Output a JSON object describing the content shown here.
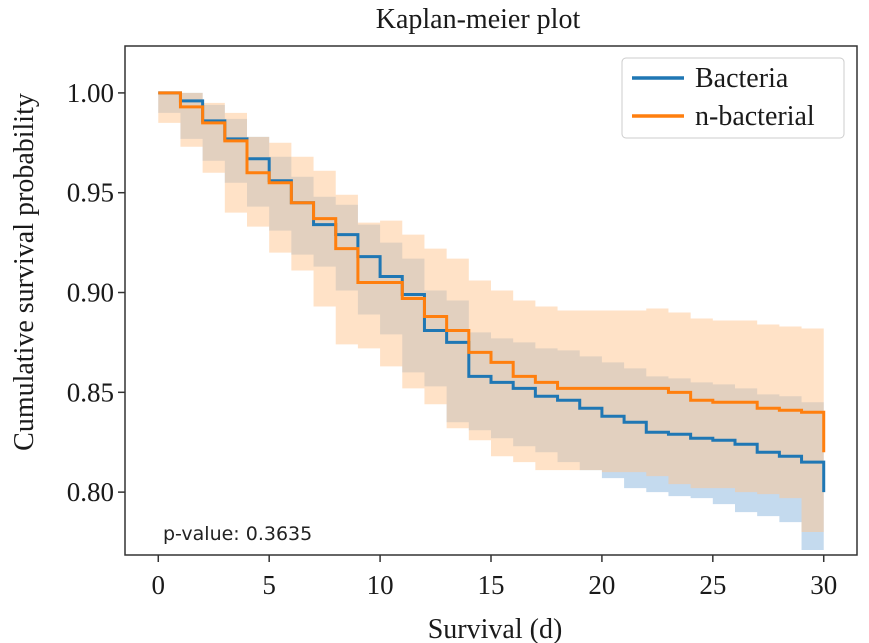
{
  "chart_data": {
    "type": "line",
    "title": "Kaplan-meier plot",
    "xlabel": "Survival (d)",
    "ylabel": "Cumulative survival probability",
    "xlim": [
      -1.5,
      31.5
    ],
    "ylim": [
      0.7685,
      1.0235
    ],
    "xticks": [
      0,
      5,
      10,
      15,
      20,
      25,
      30
    ],
    "xtick_labels": [
      "0",
      "5",
      "10",
      "15",
      "20",
      "25",
      "30"
    ],
    "yticks": [
      0.8,
      0.85,
      0.9,
      0.95,
      1.0
    ],
    "ytick_labels": [
      "0.80",
      "0.85",
      "0.90",
      "0.95",
      "1.00"
    ],
    "grid": false,
    "legend_position": "top-right",
    "annotation": "p-value: 0.3635",
    "series": [
      {
        "name": "Bacteria",
        "color": "#1f77b4",
        "band_color": "#8ab6dd",
        "x": [
          0,
          1,
          2,
          3,
          4,
          5,
          6,
          7,
          8,
          9,
          10,
          11,
          12,
          13,
          14,
          15,
          16,
          17,
          18,
          19,
          20,
          21,
          22,
          23,
          24,
          25,
          26,
          27,
          28,
          29,
          30
        ],
        "y": [
          1.0,
          0.996,
          0.986,
          0.977,
          0.967,
          0.956,
          0.945,
          0.934,
          0.929,
          0.918,
          0.908,
          0.899,
          0.881,
          0.875,
          0.858,
          0.855,
          0.852,
          0.848,
          0.846,
          0.842,
          0.838,
          0.835,
          0.83,
          0.829,
          0.827,
          0.826,
          0.824,
          0.82,
          0.818,
          0.815,
          0.8
        ],
        "lower": [
          1.0,
          0.99,
          0.977,
          0.966,
          0.955,
          0.943,
          0.931,
          0.919,
          0.913,
          0.901,
          0.889,
          0.879,
          0.86,
          0.853,
          0.835,
          0.831,
          0.827,
          0.823,
          0.82,
          0.815,
          0.811,
          0.807,
          0.802,
          0.8,
          0.798,
          0.797,
          0.794,
          0.79,
          0.788,
          0.785,
          0.771
        ],
        "upper": [
          1.0,
          1.0,
          0.994,
          0.987,
          0.978,
          0.968,
          0.958,
          0.948,
          0.944,
          0.934,
          0.925,
          0.917,
          0.901,
          0.896,
          0.88,
          0.877,
          0.875,
          0.872,
          0.871,
          0.868,
          0.865,
          0.862,
          0.858,
          0.857,
          0.855,
          0.854,
          0.852,
          0.849,
          0.848,
          0.845,
          0.83
        ]
      },
      {
        "name": "n-bacterial",
        "color": "#ff7f0e",
        "band_color": "#ffc58f",
        "x": [
          0,
          1,
          2,
          3,
          4,
          5,
          6,
          7,
          8,
          9,
          10,
          11,
          12,
          13,
          14,
          15,
          16,
          17,
          18,
          19,
          20,
          21,
          22,
          23,
          24,
          25,
          26,
          27,
          28,
          29,
          30
        ],
        "y": [
          1.0,
          0.993,
          0.985,
          0.976,
          0.96,
          0.955,
          0.945,
          0.937,
          0.922,
          0.905,
          0.905,
          0.897,
          0.888,
          0.881,
          0.87,
          0.865,
          0.858,
          0.855,
          0.852,
          0.852,
          0.852,
          0.852,
          0.852,
          0.85,
          0.846,
          0.845,
          0.845,
          0.842,
          0.841,
          0.84,
          0.82
        ],
        "lower": [
          1.0,
          0.985,
          0.973,
          0.96,
          0.94,
          0.933,
          0.92,
          0.911,
          0.893,
          0.874,
          0.872,
          0.863,
          0.852,
          0.844,
          0.832,
          0.826,
          0.818,
          0.815,
          0.811,
          0.811,
          0.811,
          0.81,
          0.81,
          0.808,
          0.804,
          0.802,
          0.802,
          0.8,
          0.799,
          0.797,
          0.78
        ],
        "upper": [
          1.0,
          1.0,
          0.995,
          0.99,
          0.978,
          0.975,
          0.968,
          0.961,
          0.949,
          0.935,
          0.936,
          0.929,
          0.922,
          0.917,
          0.906,
          0.901,
          0.896,
          0.893,
          0.891,
          0.891,
          0.891,
          0.891,
          0.892,
          0.89,
          0.887,
          0.886,
          0.886,
          0.884,
          0.883,
          0.882,
          0.866
        ]
      }
    ]
  }
}
